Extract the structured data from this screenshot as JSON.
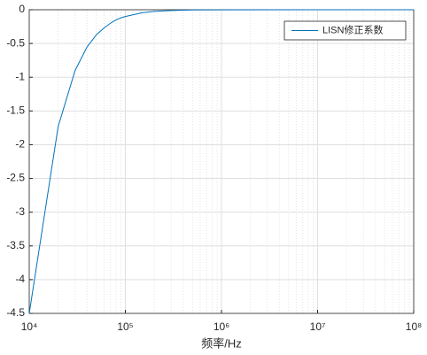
{
  "chart_data": {
    "type": "line",
    "xlabel": "频率/Hz",
    "x": [
      10000,
      20000,
      30000,
      40000,
      50000,
      60000,
      70000,
      80000,
      90000,
      100000,
      150000,
      200000,
      300000,
      500000,
      1000000,
      10000000,
      100000000
    ],
    "series": [
      {
        "name": "LISN修正系数",
        "color": "#0072bd",
        "values": [
          -4.5,
          -1.73,
          -0.9,
          -0.55,
          -0.37,
          -0.27,
          -0.2,
          -0.15,
          -0.12,
          -0.1,
          -0.045,
          -0.025,
          -0.011,
          -0.004,
          -0.001,
          0,
          0
        ]
      }
    ],
    "xscale": "log",
    "xlim": [
      10000,
      100000000
    ],
    "xticks": [
      {
        "value": 10000,
        "label": "10⁴"
      },
      {
        "value": 100000,
        "label": "10⁵"
      },
      {
        "value": 1000000,
        "label": "10⁶"
      },
      {
        "value": 10000000,
        "label": "10⁷"
      },
      {
        "value": 100000000,
        "label": "10⁸"
      }
    ],
    "ylim": [
      -4.5,
      0
    ],
    "yticks": [
      0,
      -0.5,
      -1,
      -1.5,
      -2,
      -2.5,
      -3,
      -3.5,
      -4,
      -4.5
    ],
    "grid": true,
    "minor_grid": true,
    "legend": "northeast"
  }
}
